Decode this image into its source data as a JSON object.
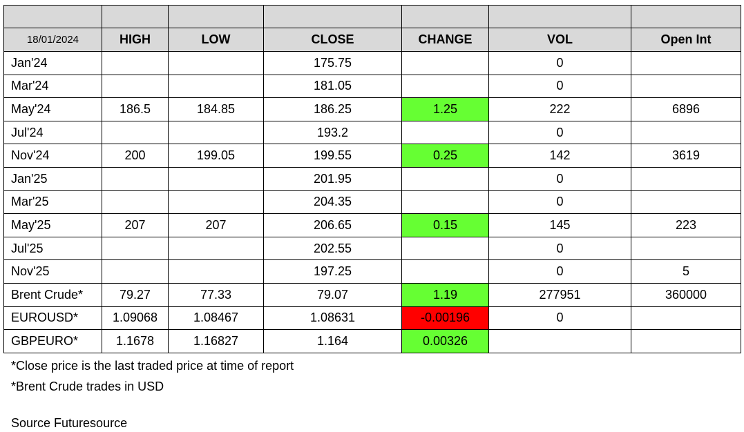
{
  "table": {
    "date": "18/01/2024",
    "columns": [
      "HIGH",
      "LOW",
      "CLOSE",
      "CHANGE",
      "VOL",
      "Open Int"
    ],
    "rows": [
      {
        "contract": "Jan'24",
        "high": "",
        "low": "",
        "close": "175.75",
        "change": "",
        "vol": "0",
        "open_int": ""
      },
      {
        "contract": "Mar'24",
        "high": "",
        "low": "",
        "close": "181.05",
        "change": "",
        "vol": "0",
        "open_int": ""
      },
      {
        "contract": "May'24",
        "high": "186.5",
        "low": "184.85",
        "close": "186.25",
        "change": "1.25",
        "vol": "222",
        "open_int": "6896"
      },
      {
        "contract": "Jul'24",
        "high": "",
        "low": "",
        "close": "193.2",
        "change": "",
        "vol": "0",
        "open_int": ""
      },
      {
        "contract": "Nov'24",
        "high": "200",
        "low": "199.05",
        "close": "199.55",
        "change": "0.25",
        "vol": "142",
        "open_int": "3619"
      },
      {
        "contract": "Jan'25",
        "high": "",
        "low": "",
        "close": "201.95",
        "change": "",
        "vol": "0",
        "open_int": ""
      },
      {
        "contract": "Mar'25",
        "high": "",
        "low": "",
        "close": "204.35",
        "change": "",
        "vol": "0",
        "open_int": ""
      },
      {
        "contract": "May'25",
        "high": "207",
        "low": "207",
        "close": "206.65",
        "change": "0.15",
        "vol": "145",
        "open_int": "223"
      },
      {
        "contract": "Jul'25",
        "high": "",
        "low": "",
        "close": "202.55",
        "change": "",
        "vol": "0",
        "open_int": ""
      },
      {
        "contract": "Nov'25",
        "high": "",
        "low": "",
        "close": "197.25",
        "change": "",
        "vol": "0",
        "open_int": "5"
      },
      {
        "contract": "Brent Crude*",
        "high": "79.27",
        "low": "77.33",
        "close": "79.07",
        "change": "1.19",
        "vol": "277951",
        "open_int": "360000"
      },
      {
        "contract": "EUROUSD*",
        "high": "1.09068",
        "low": "1.08467",
        "close": "1.08631",
        "change": "-0.00196",
        "vol": "0",
        "open_int": ""
      },
      {
        "contract": "GBPEURO*",
        "high": "1.1678",
        "low": "1.16827",
        "close": "1.164",
        "change": "0.00326",
        "vol": "",
        "open_int": ""
      }
    ]
  },
  "notes": [
    "*Close price is the last traded price at time of report",
    "*Brent Crude trades in USD"
  ],
  "source": "Source Futuresource",
  "colors": {
    "positive_change": "#66ff33",
    "negative_change": "#ff0000",
    "header_bg": "#d9d9d9"
  }
}
